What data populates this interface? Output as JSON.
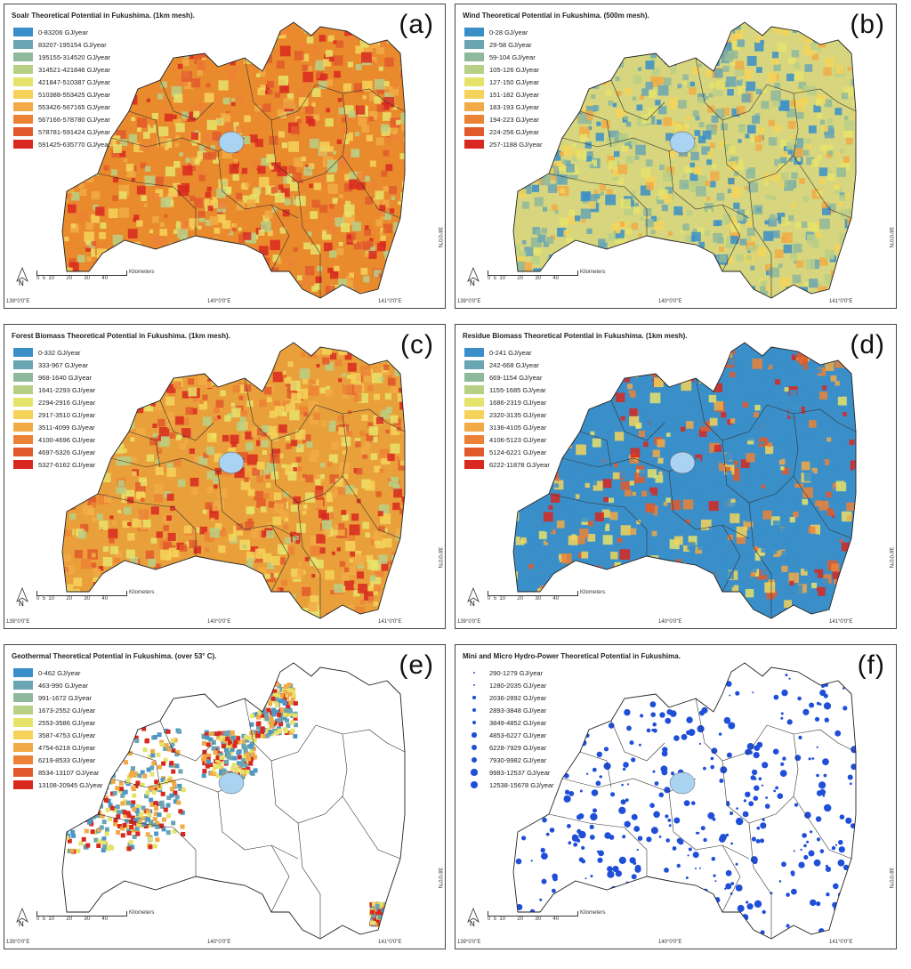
{
  "panels": [
    {
      "id": "a",
      "title": "Soalr Theoretical Potential in Fukushima. (1km mesh).",
      "letter": "(a)",
      "legend_type": "swatch",
      "fill": "#e98a2c",
      "texture": "#d24a1e",
      "legend": [
        {
          "label": "0-83206 GJ/year",
          "color": "#3a8fc9"
        },
        {
          "label": "83207-195154 GJ/year",
          "color": "#6aa5b3"
        },
        {
          "label": "195155-314520 GJ/year",
          "color": "#8fb99c"
        },
        {
          "label": "314521-421846 GJ/year",
          "color": "#b8cf86"
        },
        {
          "label": "421847-510387 GJ/year",
          "color": "#e6e36b"
        },
        {
          "label": "510388-553425 GJ/year",
          "color": "#f5d35a"
        },
        {
          "label": "553426-567165 GJ/year",
          "color": "#f1aa45"
        },
        {
          "label": "567166-578780 GJ/year",
          "color": "#ec8236"
        },
        {
          "label": "578781-591424 GJ/year",
          "color": "#e25a2b"
        },
        {
          "label": "591425-635770 GJ/year",
          "color": "#d82820"
        }
      ]
    },
    {
      "id": "b",
      "title": "Wind Theoretical Potential in Fukushima. (500m mesh).",
      "letter": "(b)",
      "legend_type": "swatch",
      "fill": "#d7d67e",
      "texture": "#6f9fb5",
      "legend": [
        {
          "label": "0-28 GJ/year",
          "color": "#3a8fc9"
        },
        {
          "label": "29-58 GJ/year",
          "color": "#6aa5b3"
        },
        {
          "label": "59-104 GJ/year",
          "color": "#8fb99c"
        },
        {
          "label": "105-126 GJ/year",
          "color": "#b8cf86"
        },
        {
          "label": "127-150 GJ/year",
          "color": "#e6e36b"
        },
        {
          "label": "151-182 GJ/year",
          "color": "#f5d35a"
        },
        {
          "label": "183-193 GJ/year",
          "color": "#f1aa45"
        },
        {
          "label": "194-223 GJ/year",
          "color": "#ec8236"
        },
        {
          "label": "224-256 GJ/year",
          "color": "#e25a2b"
        },
        {
          "label": "257-1188 GJ/year",
          "color": "#d82820"
        }
      ]
    },
    {
      "id": "c",
      "title": "Forest Biomass Theoretical Potential in Fukushima. (1km mesh).",
      "letter": "(c)",
      "legend_type": "swatch",
      "fill": "#e9a03a",
      "texture": "#d83a22",
      "legend": [
        {
          "label": "0-332 GJ/year",
          "color": "#3a8fc9"
        },
        {
          "label": "333-967 GJ/year",
          "color": "#6aa5b3"
        },
        {
          "label": "968-1640 GJ/year",
          "color": "#8fb99c"
        },
        {
          "label": "1641-2293 GJ/year",
          "color": "#b8cf86"
        },
        {
          "label": "2294-2916 GJ/year",
          "color": "#e6e36b"
        },
        {
          "label": "2917-3510 GJ/year",
          "color": "#f5d35a"
        },
        {
          "label": "3511-4099 GJ/year",
          "color": "#f1aa45"
        },
        {
          "label": "4100-4696 GJ/year",
          "color": "#ec8236"
        },
        {
          "label": "4697-5326 GJ/year",
          "color": "#e25a2b"
        },
        {
          "label": "5327-6162 GJ/year",
          "color": "#d82820"
        }
      ]
    },
    {
      "id": "d",
      "title": "Residue Biomass Theoretical Potential in Fukushima. (1km mesh).",
      "letter": "(d)",
      "legend_type": "swatch",
      "fill": "#3a8fc9",
      "texture": "#e46a2a",
      "legend": [
        {
          "label": "0-241 GJ/year",
          "color": "#3a8fc9"
        },
        {
          "label": "242-668 GJ/year",
          "color": "#6aa5b3"
        },
        {
          "label": "669-1154 GJ/year",
          "color": "#8fb99c"
        },
        {
          "label": "1155-1685 GJ/year",
          "color": "#b8cf86"
        },
        {
          "label": "1686-2319 GJ/year",
          "color": "#e6e36b"
        },
        {
          "label": "2320-3135 GJ/year",
          "color": "#f5d35a"
        },
        {
          "label": "3136-4105 GJ/year",
          "color": "#f1aa45"
        },
        {
          "label": "4106-5123 GJ/year",
          "color": "#ec8236"
        },
        {
          "label": "5124-6221 GJ/year",
          "color": "#e25a2b"
        },
        {
          "label": "6222-11878 GJ/year",
          "color": "#d82820"
        }
      ]
    },
    {
      "id": "e",
      "title": "Geothermal Theoretical Potential in Fukushima. (over 53° C).",
      "letter": "(e)",
      "legend_type": "swatch",
      "fill": "#ffffff",
      "texture": "#4d97c6",
      "legend": [
        {
          "label": "0-462 GJ/year",
          "color": "#3a8fc9"
        },
        {
          "label": "463-990 GJ/year",
          "color": "#6aa5b3"
        },
        {
          "label": "991-1672 GJ/year",
          "color": "#8fb99c"
        },
        {
          "label": "1673-2552 GJ/year",
          "color": "#b8cf86"
        },
        {
          "label": "2553-3586 GJ/year",
          "color": "#e6e36b"
        },
        {
          "label": "3587-4753 GJ/year",
          "color": "#f5d35a"
        },
        {
          "label": "4754-6218 GJ/year",
          "color": "#f1aa45"
        },
        {
          "label": "6219-8533 GJ/year",
          "color": "#ec8236"
        },
        {
          "label": "8534-13107 GJ/year",
          "color": "#e25a2b"
        },
        {
          "label": "13108-20945 GJ/year",
          "color": "#d82820"
        }
      ]
    },
    {
      "id": "f",
      "title": "Mini and Micro Hydro-Power Theoretical Potential in Fukushima.",
      "letter": "(f)",
      "legend_type": "dot",
      "fill": "#ffffff",
      "texture": "#1f4fd8",
      "legend": [
        {
          "label": "290-1279 GJ/year",
          "size": 1
        },
        {
          "label": "1280-2035 GJ/year",
          "size": 2
        },
        {
          "label": "2036-2892 GJ/year",
          "size": 3
        },
        {
          "label": "2893-3848 GJ/year",
          "size": 4
        },
        {
          "label": "3849-4852 GJ/year",
          "size": 5
        },
        {
          "label": "4853-6227 GJ/year",
          "size": 6
        },
        {
          "label": "6228-7929 GJ/year",
          "size": 7
        },
        {
          "label": "7930-9982 GJ/year",
          "size": 8
        },
        {
          "label": "9983-12537 GJ/year",
          "size": 9
        },
        {
          "label": "12538-15678 GJ/year",
          "size": 10
        }
      ]
    }
  ],
  "scalebar": {
    "ticks": "0  5  10        20        30        40",
    "unit": "Kilometers"
  },
  "longitudes": [
    "139°0'0\"E",
    "140°0'0\"E",
    "141°0'0\"E"
  ],
  "latitude": "38°0'0\"N",
  "north_label": "N"
}
